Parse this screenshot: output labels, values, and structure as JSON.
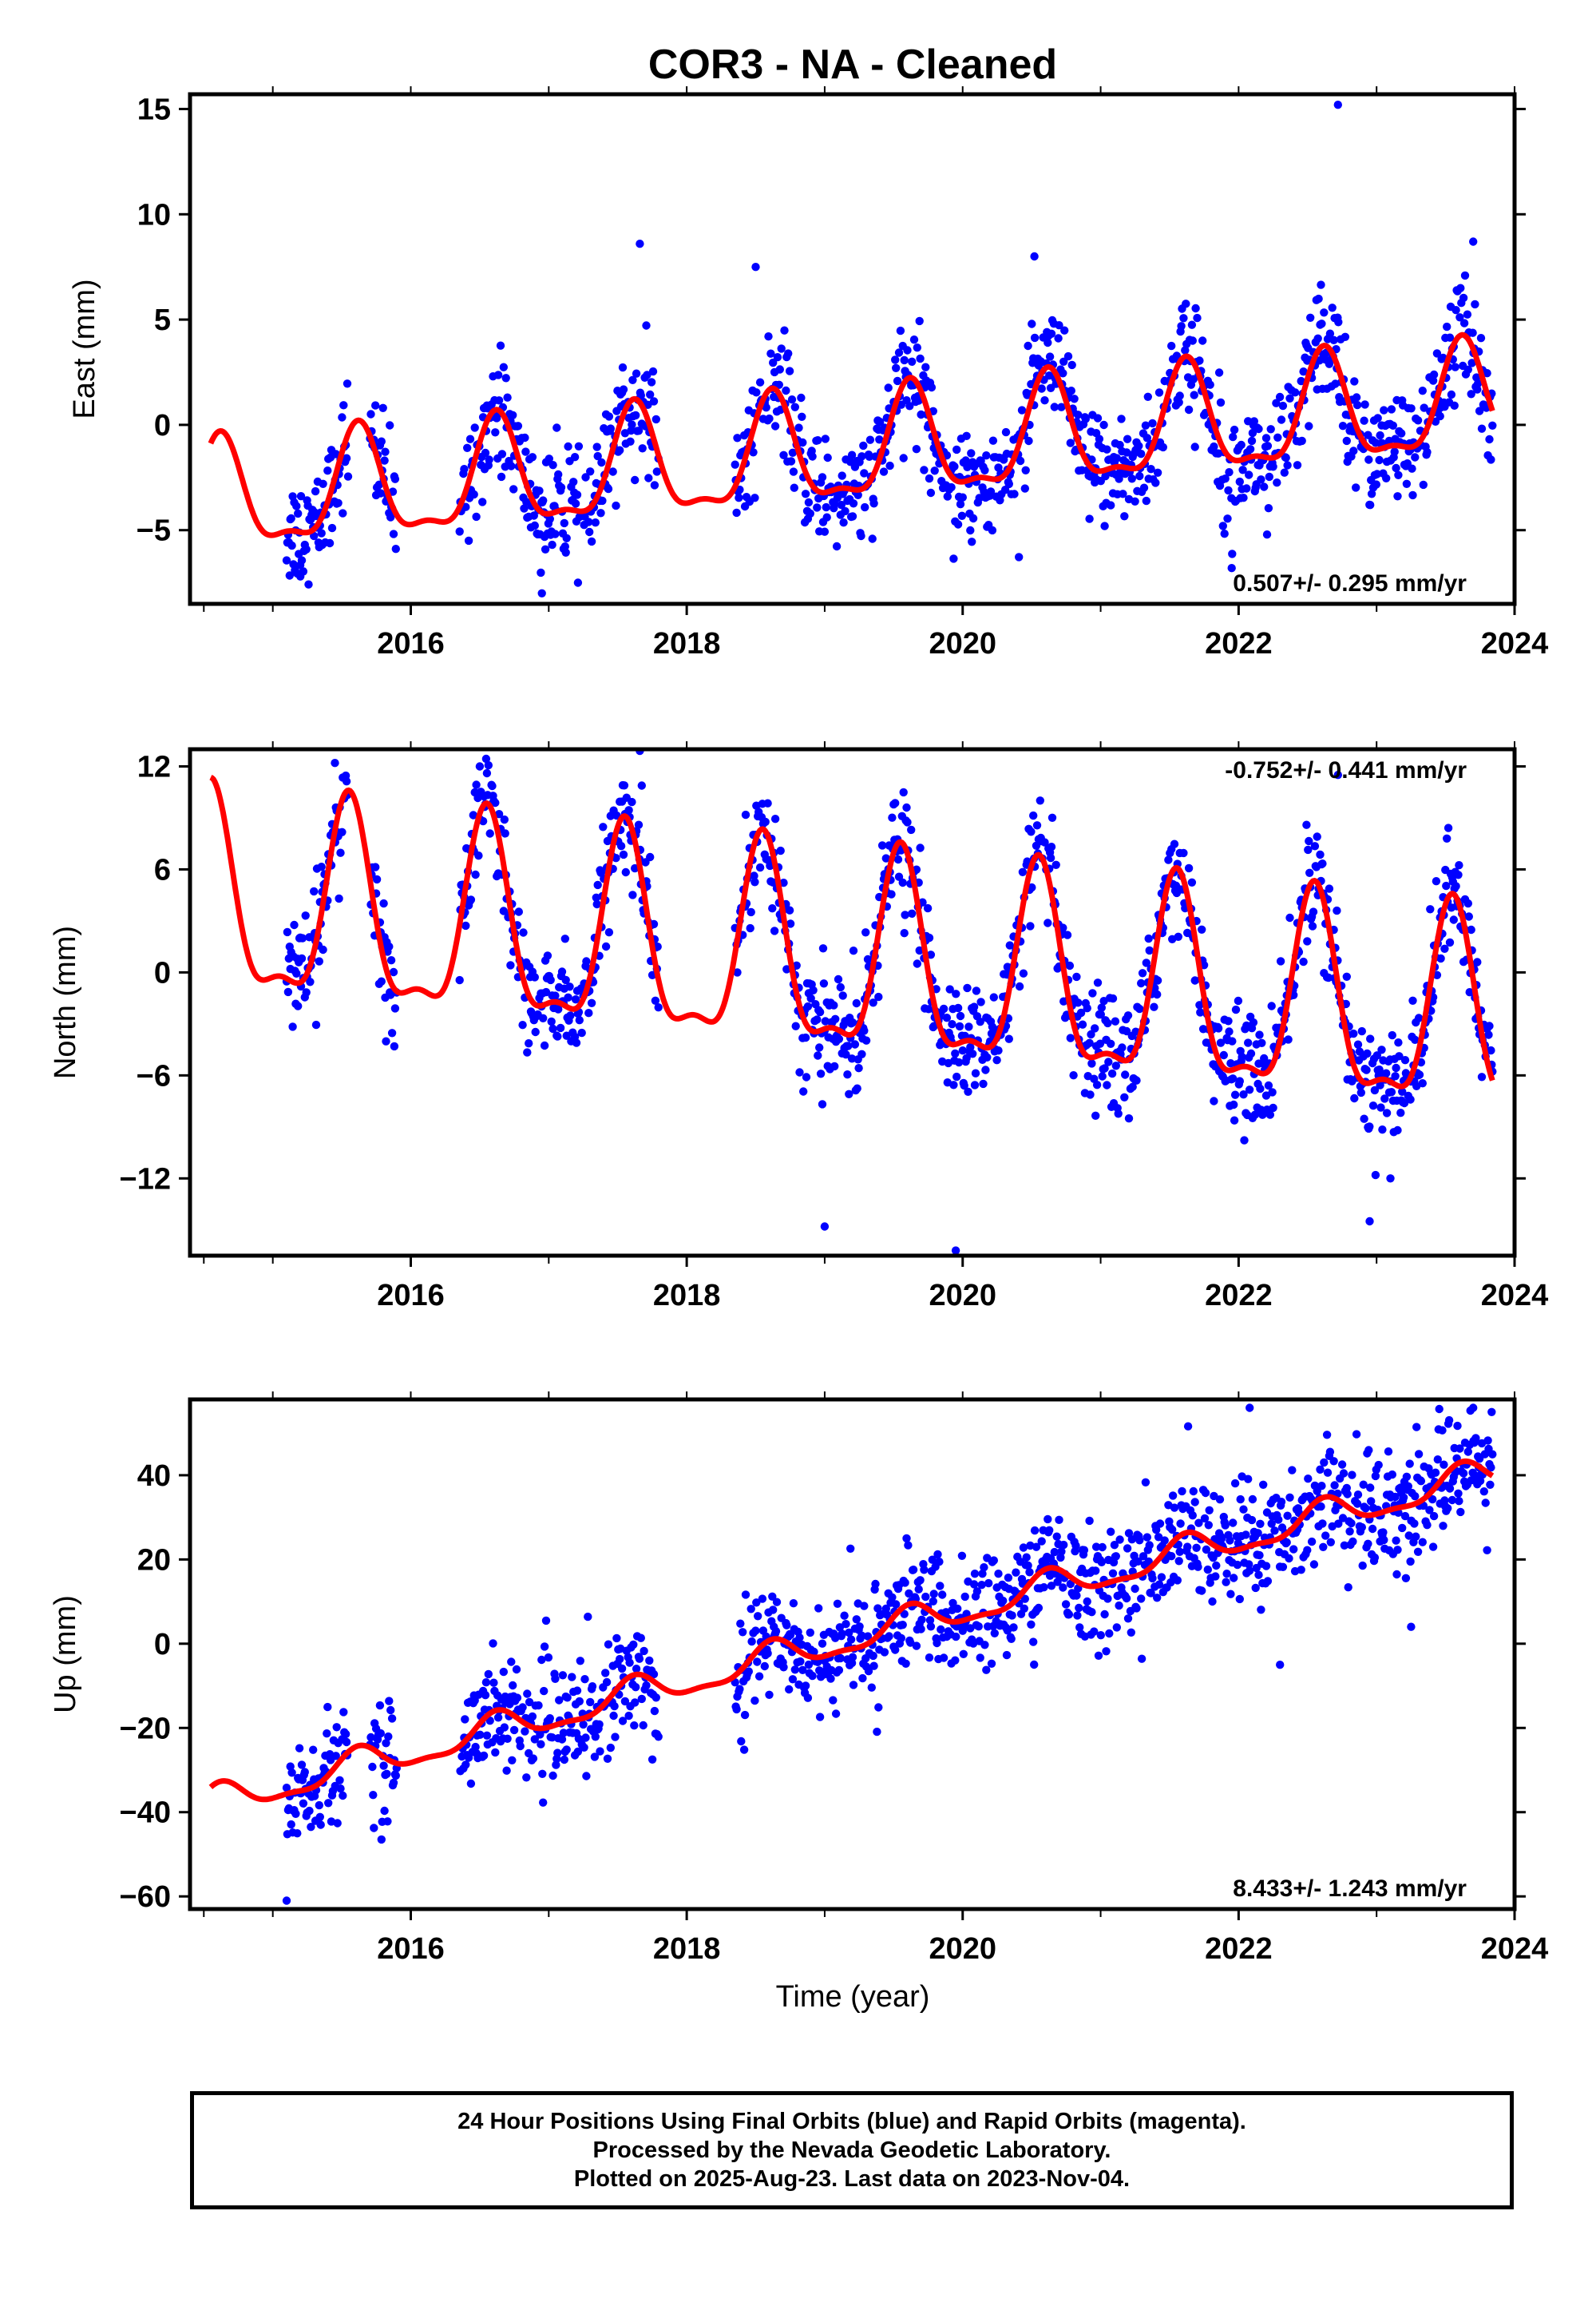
{
  "title": "COR3  - NA - Cleaned",
  "colors": {
    "final_orbits": "#0000ff",
    "model": "#ff0000",
    "frame": "#000000"
  },
  "footer": {
    "line1": "24 Hour Positions Using Final Orbits (blue) and Rapid Orbits (magenta).",
    "line2": "Processed by the Nevada Geodetic Laboratory.",
    "line3": "Plotted on 2025-Aug-23. Last data on 2023-Nov-04."
  },
  "xlabel": "Time (year)",
  "chart_data": [
    {
      "type": "scatter",
      "ylabel": "East (mm)",
      "xlim": [
        2014.4,
        2024.0
      ],
      "ylim": [
        -8.5,
        15.7
      ],
      "x_ticks": [
        2016,
        2018,
        2020,
        2022,
        2024
      ],
      "y_ticks": [
        -5,
        0,
        5,
        10,
        15
      ],
      "rate": "0.507+/- 0.295 mm/yr",
      "rate_position": "bottom-right",
      "model": {
        "mean_offset": -3.7,
        "trend": 0.507,
        "annual_amplitude": 2.5,
        "annual_peak_phase": 0.62,
        "start": 2014.55,
        "end": 2023.84
      },
      "outliers": [
        [
          2022.72,
          15.2
        ],
        [
          2017.66,
          8.6
        ],
        [
          2018.5,
          7.5
        ],
        [
          2020.52,
          8.0
        ],
        [
          2023.7,
          8.7
        ],
        [
          2016.95,
          -8.0
        ],
        [
          2015.2,
          -7.2
        ],
        [
          2021.95,
          -6.8
        ]
      ]
    },
    {
      "type": "scatter",
      "ylabel": "North (mm)",
      "xlim": [
        2014.4,
        2024.0
      ],
      "ylim": [
        -16.5,
        13.0
      ],
      "x_ticks": [
        2016,
        2018,
        2020,
        2022,
        2024
      ],
      "y_ticks": [
        -12,
        -6,
        0,
        6,
        12
      ],
      "rate": "-0.752+/- 0.441 mm/yr",
      "rate_position": "top-right",
      "model": {
        "mean_offset": 3.8,
        "trend": -0.752,
        "annual_amplitude": 5.6,
        "annual_peak_phase": 0.55,
        "start": 2014.55,
        "end": 2023.84
      },
      "outliers": [
        [
          2017.66,
          12.9
        ],
        [
          2016.5,
          12.0
        ],
        [
          2015.45,
          12.2
        ],
        [
          2019.0,
          -14.8
        ],
        [
          2019.95,
          -16.2
        ],
        [
          2022.95,
          -14.5
        ],
        [
          2023.1,
          -12.0
        ],
        [
          2022.72,
          11.5
        ]
      ]
    },
    {
      "type": "scatter",
      "ylabel": "Up (mm)",
      "xlim": [
        2014.4,
        2024.0
      ],
      "ylim": [
        -63,
        58
      ],
      "x_ticks": [
        2016,
        2018,
        2020,
        2022,
        2024
      ],
      "y_ticks": [
        -60,
        -40,
        -20,
        0,
        20,
        40
      ],
      "rate": "8.433+/- 1.243 mm/yr",
      "rate_position": "bottom-right",
      "model": {
        "mean_offset": -38,
        "trend": 8.433,
        "annual_amplitude": 3.5,
        "annual_peak_phase": 0.62,
        "start": 2014.55,
        "end": 2023.84
      },
      "outliers": [
        [
          2022.08,
          56
        ],
        [
          2023.7,
          56
        ],
        [
          2015.1,
          -61
        ],
        [
          2022.3,
          -5
        ],
        [
          2023.25,
          4
        ]
      ]
    }
  ]
}
